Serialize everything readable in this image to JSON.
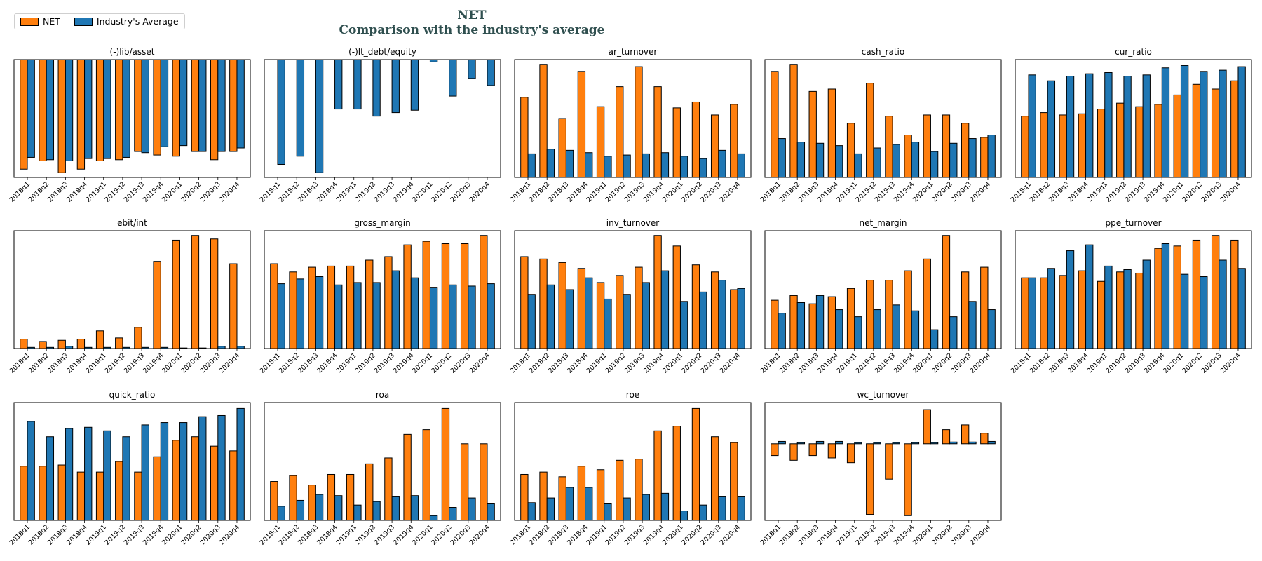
{
  "title": {
    "line1": "NET",
    "line2": "Comparison with the industry's average"
  },
  "legend": [
    {
      "name": "NET",
      "color": "#ff7f0e"
    },
    {
      "name": "Industry's Average",
      "color": "#1f77b4"
    }
  ],
  "chart_data": {
    "type": "bar",
    "categories": [
      "2018q1",
      "2018q2",
      "2018q3",
      "2018q4",
      "2019q1",
      "2019q2",
      "2019q3",
      "2019q4",
      "2020q1",
      "2020q2",
      "2020q3",
      "2020q4"
    ],
    "series_names": [
      "NET",
      "Industry's Average"
    ],
    "colors": [
      "#ff7f0e",
      "#1f77b4"
    ],
    "grid": false,
    "legend_position": "top-left",
    "subplots": [
      {
        "title": "(-)lib/asset",
        "ylim": [
          -1.0,
          0
        ],
        "net": [
          -0.93,
          -0.86,
          -0.96,
          -0.93,
          -0.86,
          -0.85,
          -0.78,
          -0.81,
          -0.82,
          -0.78,
          -0.85,
          -0.78
        ],
        "ind": [
          -0.83,
          -0.85,
          -0.86,
          -0.84,
          -0.84,
          -0.83,
          -0.79,
          -0.74,
          -0.73,
          -0.78,
          -0.78,
          -0.75
        ]
      },
      {
        "title": "(-)lt_debt/equity",
        "ylim": [
          -1.0,
          0
        ],
        "net": [
          0,
          0,
          0,
          0,
          0,
          0,
          0,
          0,
          0,
          0,
          0,
          0
        ],
        "ind": [
          -0.89,
          -0.82,
          -0.96,
          -0.42,
          -0.42,
          -0.48,
          -0.45,
          -0.43,
          -0.02,
          -0.31,
          -0.16,
          -0.22
        ]
      },
      {
        "title": "ar_turnover",
        "ylim": [
          0,
          1.0
        ],
        "net": [
          0.68,
          0.96,
          0.5,
          0.9,
          0.6,
          0.77,
          0.94,
          0.77,
          0.59,
          0.64,
          0.53,
          0.62
        ],
        "ind": [
          0.2,
          0.24,
          0.23,
          0.21,
          0.18,
          0.19,
          0.2,
          0.21,
          0.18,
          0.16,
          0.23,
          0.2
        ]
      },
      {
        "title": "cash_ratio",
        "ylim": [
          0,
          1.0
        ],
        "net": [
          0.9,
          0.96,
          0.73,
          0.75,
          0.46,
          0.8,
          0.52,
          0.36,
          0.53,
          0.53,
          0.46,
          0.34
        ],
        "ind": [
          0.33,
          0.3,
          0.29,
          0.27,
          0.2,
          0.25,
          0.28,
          0.3,
          0.22,
          0.29,
          0.33,
          0.36
        ]
      },
      {
        "title": "cur_ratio",
        "ylim": [
          0,
          1.0
        ],
        "net": [
          0.52,
          0.55,
          0.53,
          0.54,
          0.58,
          0.63,
          0.6,
          0.62,
          0.7,
          0.79,
          0.75,
          0.82
        ],
        "ind": [
          0.87,
          0.82,
          0.86,
          0.88,
          0.89,
          0.86,
          0.87,
          0.93,
          0.95,
          0.9,
          0.91,
          0.94
        ]
      },
      {
        "title": "ebit/int",
        "ylim": [
          0,
          1.0
        ],
        "net": [
          0.08,
          0.06,
          0.07,
          0.08,
          0.15,
          0.09,
          0.18,
          0.74,
          0.92,
          0.96,
          0.93,
          0.72
        ],
        "ind": [
          0.01,
          0.01,
          0.02,
          0.01,
          0.01,
          0.01,
          0.01,
          0.01,
          0.005,
          0.005,
          0.02,
          0.02
        ]
      },
      {
        "title": "gross_margin",
        "ylim": [
          0,
          1.0
        ],
        "net": [
          0.72,
          0.65,
          0.69,
          0.7,
          0.7,
          0.75,
          0.78,
          0.88,
          0.91,
          0.89,
          0.89,
          0.96
        ],
        "ind": [
          0.55,
          0.59,
          0.61,
          0.54,
          0.56,
          0.56,
          0.66,
          0.6,
          0.52,
          0.54,
          0.53,
          0.55
        ]
      },
      {
        "title": "inv_turnover",
        "ylim": [
          0,
          1.0
        ],
        "net": [
          0.78,
          0.76,
          0.73,
          0.68,
          0.56,
          0.62,
          0.69,
          0.96,
          0.87,
          0.71,
          0.65,
          0.5
        ],
        "ind": [
          0.46,
          0.54,
          0.5,
          0.6,
          0.42,
          0.46,
          0.56,
          0.66,
          0.4,
          0.48,
          0.58,
          0.51
        ]
      },
      {
        "title": "net_margin",
        "ylim": [
          0,
          1.0
        ],
        "net": [
          0.41,
          0.45,
          0.38,
          0.44,
          0.51,
          0.58,
          0.58,
          0.66,
          0.76,
          0.96,
          0.65,
          0.69
        ],
        "ind": [
          0.3,
          0.39,
          0.45,
          0.33,
          0.27,
          0.33,
          0.37,
          0.32,
          0.16,
          0.27,
          0.4,
          0.33
        ]
      },
      {
        "title": "ppe_turnover",
        "ylim": [
          0,
          1.0
        ],
        "net": [
          0.6,
          0.6,
          0.62,
          0.66,
          0.57,
          0.65,
          0.64,
          0.85,
          0.87,
          0.92,
          0.96,
          0.92
        ],
        "ind": [
          0.6,
          0.68,
          0.83,
          0.88,
          0.7,
          0.67,
          0.75,
          0.89,
          0.63,
          0.61,
          0.75,
          0.68
        ]
      },
      {
        "title": "quick_ratio",
        "ylim": [
          0,
          1.0
        ],
        "net": [
          0.46,
          0.46,
          0.47,
          0.41,
          0.41,
          0.5,
          0.41,
          0.54,
          0.68,
          0.71,
          0.63,
          0.59
        ],
        "ind": [
          0.84,
          0.71,
          0.78,
          0.79,
          0.76,
          0.71,
          0.81,
          0.83,
          0.83,
          0.88,
          0.89,
          0.95
        ]
      },
      {
        "title": "roa",
        "ylim": [
          0,
          1.0
        ],
        "net": [
          0.33,
          0.38,
          0.3,
          0.39,
          0.39,
          0.48,
          0.53,
          0.73,
          0.77,
          0.95,
          0.65,
          0.65
        ],
        "ind": [
          0.12,
          0.17,
          0.22,
          0.21,
          0.13,
          0.16,
          0.2,
          0.21,
          0.04,
          0.11,
          0.19,
          0.14
        ]
      },
      {
        "title": "roe",
        "ylim": [
          0,
          1.0
        ],
        "net": [
          0.39,
          0.41,
          0.37,
          0.46,
          0.43,
          0.51,
          0.52,
          0.76,
          0.8,
          0.95,
          0.71,
          0.66
        ],
        "ind": [
          0.15,
          0.19,
          0.28,
          0.28,
          0.14,
          0.19,
          0.22,
          0.23,
          0.08,
          0.13,
          0.2,
          0.2
        ]
      },
      {
        "title": "wc_turnover",
        "ylim": [
          -0.65,
          0.35
        ],
        "net": [
          -0.1,
          -0.14,
          -0.1,
          -0.12,
          -0.16,
          -0.6,
          -0.3,
          -0.61,
          0.29,
          0.12,
          0.16,
          0.09
        ],
        "ind": [
          0.02,
          0.01,
          0.02,
          0.02,
          0.01,
          0.01,
          0.01,
          0.01,
          0.01,
          0.015,
          0.015,
          0.02
        ]
      }
    ]
  }
}
